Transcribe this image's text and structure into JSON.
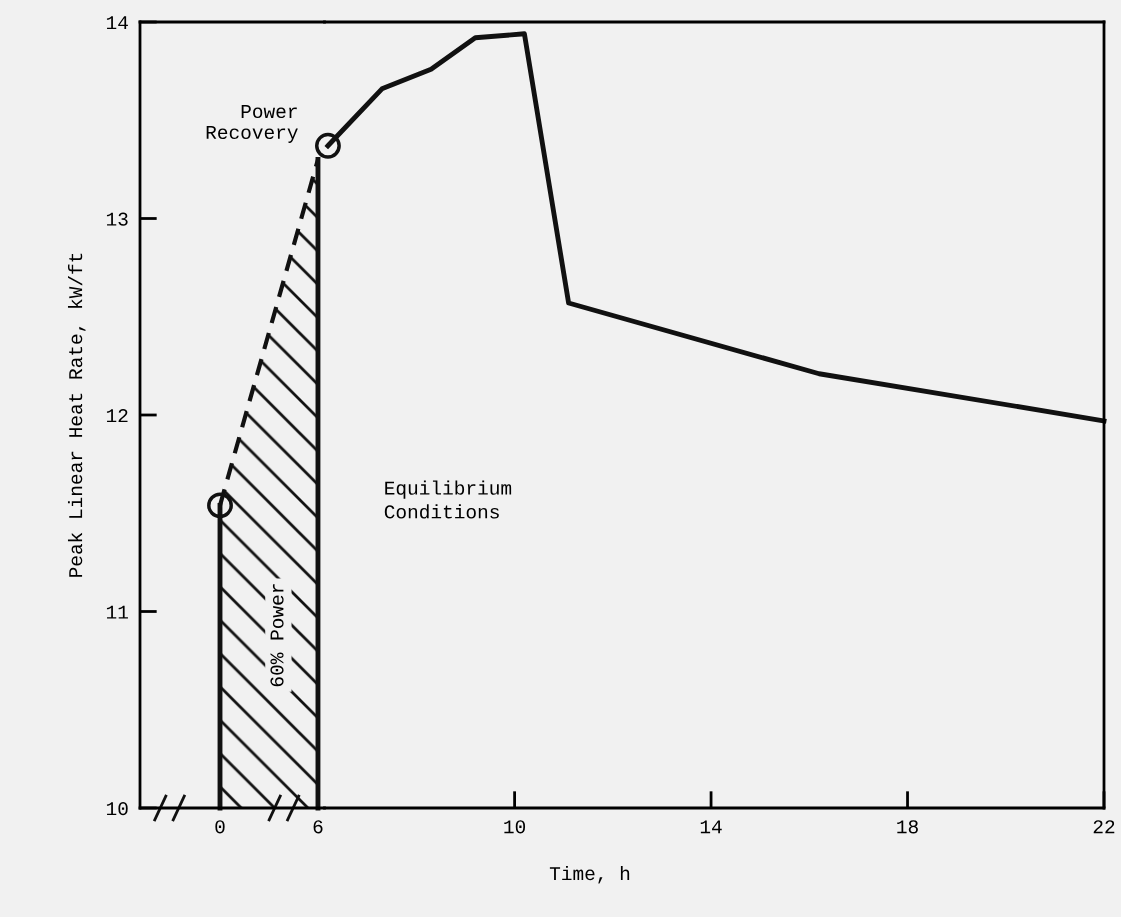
{
  "chart_data": [
    {
      "type": "area",
      "ylabel": "Peak Linear Heat Rate, kW/ft",
      "xlim": [
        -4.9,
        6.4
      ],
      "xticks": [
        0,
        6
      ],
      "ylim": [
        10,
        14
      ],
      "yticks": [
        10,
        11,
        12,
        13,
        14
      ],
      "tick_labels": true,
      "series": [
        {
          "color": "#111111",
          "line_style": "dashed",
          "x": [
            0,
            6
          ],
          "values": [
            11.54,
            13.3
          ]
        },
        {
          "type": "line",
          "color": "#111111",
          "line_style": "solid",
          "x": [
            0,
            0
          ],
          "values": [
            10,
            11.54
          ]
        },
        {
          "type": "line",
          "color": "#111111",
          "line_style": "solid",
          "x": [
            6,
            6
          ],
          "values": [
            10,
            13.3
          ]
        },
        {
          "type": "scatter",
          "color": "#111111",
          "marker": "circle",
          "x": [
            0
          ],
          "values": [
            11.54
          ]
        }
      ],
      "annotations": [
        {
          "text": "Power\nRecovery",
          "x": 6,
          "y": 13.3
        },
        "60% Power"
      ]
    },
    {
      "type": "line",
      "xlabel": "Time, h",
      "xlim": [
        6.13,
        22
      ],
      "xticks": [
        10,
        14,
        18,
        22
      ],
      "ylim": [
        10,
        14
      ],
      "yticks": [
        10,
        11,
        12,
        13,
        14
      ],
      "tick_labels": "x",
      "series": [
        {
          "color": "#111111",
          "line_style": "solid",
          "x": [
            6.2,
            7.3,
            8.3,
            9.2,
            10.2,
            11.1,
            16.2,
            22
          ],
          "values": [
            13.37,
            13.66,
            13.76,
            13.92,
            13.94,
            12.57,
            12.21,
            11.97
          ]
        },
        {
          "type": "scatter",
          "color": "#111111",
          "marker": "circle",
          "x": [
            6.2
          ],
          "values": [
            13.37
          ]
        }
      ],
      "annotations": [
        "Equilibrium\nConditions"
      ]
    }
  ]
}
